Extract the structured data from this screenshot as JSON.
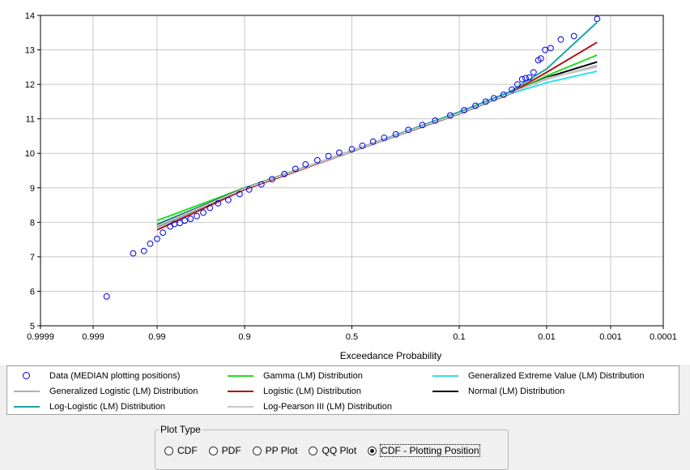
{
  "chart_data": {
    "type": "scatter",
    "xlabel": "Exceedance Probability",
    "ylabel": "",
    "ylim": [
      5,
      14
    ],
    "y_ticks": [
      5,
      6,
      7,
      8,
      9,
      10,
      11,
      12,
      13,
      14
    ],
    "x_scale": "normal-probability (reversed)",
    "x_ticks": [
      0.9999,
      0.999,
      0.99,
      0.9,
      0.5,
      0.1,
      0.01,
      0.001,
      0.0001
    ],
    "x_tick_labels": [
      "0.9999",
      "0.999",
      "0.99",
      "0.9",
      "0.5",
      "0.1",
      "0.01",
      "0.001",
      "0.0001"
    ],
    "grid": true,
    "legend_placement": "bottom",
    "data_points": {
      "name": "Data (MEDIAN plotting positions)",
      "color": "#0000ee",
      "points": [
        [
          0.9983,
          5.85
        ],
        [
          0.9955,
          7.1
        ],
        [
          0.9935,
          7.17
        ],
        [
          0.992,
          7.38
        ],
        [
          0.99,
          7.52
        ],
        [
          0.988,
          7.7
        ],
        [
          0.985,
          7.88
        ],
        [
          0.983,
          7.95
        ],
        [
          0.98,
          7.98
        ],
        [
          0.977,
          8.05
        ],
        [
          0.973,
          8.1
        ],
        [
          0.968,
          8.18
        ],
        [
          0.962,
          8.28
        ],
        [
          0.955,
          8.42
        ],
        [
          0.945,
          8.55
        ],
        [
          0.93,
          8.65
        ],
        [
          0.91,
          8.82
        ],
        [
          0.89,
          8.95
        ],
        [
          0.86,
          9.1
        ],
        [
          0.83,
          9.25
        ],
        [
          0.79,
          9.4
        ],
        [
          0.75,
          9.55
        ],
        [
          0.71,
          9.68
        ],
        [
          0.66,
          9.8
        ],
        [
          0.61,
          9.92
        ],
        [
          0.56,
          10.02
        ],
        [
          0.5,
          10.12
        ],
        [
          0.45,
          10.22
        ],
        [
          0.4,
          10.34
        ],
        [
          0.35,
          10.45
        ],
        [
          0.3,
          10.55
        ],
        [
          0.25,
          10.68
        ],
        [
          0.2,
          10.82
        ],
        [
          0.16,
          10.95
        ],
        [
          0.12,
          11.1
        ],
        [
          0.09,
          11.25
        ],
        [
          0.07,
          11.38
        ],
        [
          0.055,
          11.5
        ],
        [
          0.045,
          11.6
        ],
        [
          0.035,
          11.7
        ],
        [
          0.028,
          11.85
        ],
        [
          0.024,
          12.0
        ],
        [
          0.021,
          12.15
        ],
        [
          0.019,
          12.18
        ],
        [
          0.017,
          12.2
        ],
        [
          0.015,
          12.35
        ],
        [
          0.013,
          12.7
        ],
        [
          0.012,
          12.75
        ],
        [
          0.0105,
          13.0
        ],
        [
          0.0088,
          13.05
        ],
        [
          0.0063,
          13.3
        ],
        [
          0.004,
          13.4
        ],
        [
          0.0017,
          13.9
        ]
      ]
    },
    "series": [
      {
        "name": "Gamma (LM) Distribution",
        "color": "#22dd22",
        "points": [
          [
            0.99,
            8.05
          ],
          [
            0.9,
            9.0
          ],
          [
            0.5,
            10.06
          ],
          [
            0.1,
            11.15
          ],
          [
            0.03,
            11.72
          ],
          [
            0.01,
            12.25
          ],
          [
            0.0017,
            12.85
          ]
        ]
      },
      {
        "name": "Generalized Extreme Value (LM) Distribution",
        "color": "#33e0e8",
        "points": [
          [
            0.99,
            7.95
          ],
          [
            0.9,
            8.98
          ],
          [
            0.5,
            10.05
          ],
          [
            0.1,
            11.18
          ],
          [
            0.03,
            11.72
          ],
          [
            0.01,
            12.05
          ],
          [
            0.0017,
            12.38
          ]
        ]
      },
      {
        "name": "Generalized Logistic (LM) Distribution",
        "color": "#b0b0b0",
        "points": [
          [
            0.99,
            7.85
          ],
          [
            0.9,
            8.97
          ],
          [
            0.5,
            10.08
          ],
          [
            0.1,
            11.2
          ],
          [
            0.03,
            11.75
          ],
          [
            0.01,
            12.15
          ],
          [
            0.0017,
            12.55
          ]
        ]
      },
      {
        "name": "Logistic (LM) Distribution",
        "color": "#b01010",
        "points": [
          [
            0.99,
            7.78
          ],
          [
            0.9,
            8.95
          ],
          [
            0.5,
            10.05
          ],
          [
            0.1,
            11.15
          ],
          [
            0.03,
            11.73
          ],
          [
            0.01,
            12.35
          ],
          [
            0.0017,
            13.22
          ]
        ]
      },
      {
        "name": "Normal (LM) Distribution",
        "color": "#000000",
        "points": [
          [
            0.99,
            7.92
          ],
          [
            0.9,
            8.99
          ],
          [
            0.5,
            10.06
          ],
          [
            0.1,
            11.15
          ],
          [
            0.03,
            11.72
          ],
          [
            0.01,
            12.2
          ],
          [
            0.0017,
            12.65
          ]
        ]
      },
      {
        "name": "Log-Logistic (LM) Distribution",
        "color": "#1aa6a6",
        "points": [
          [
            0.99,
            7.88
          ],
          [
            0.9,
            8.98
          ],
          [
            0.5,
            10.06
          ],
          [
            0.1,
            11.2
          ],
          [
            0.03,
            11.78
          ],
          [
            0.01,
            12.45
          ],
          [
            0.0017,
            13.8
          ]
        ]
      },
      {
        "name": "Log-Pearson III (LM) Distribution",
        "color": "#c8c8c8",
        "points": [
          [
            0.99,
            7.9
          ],
          [
            0.9,
            8.98
          ],
          [
            0.5,
            10.06
          ],
          [
            0.1,
            11.16
          ],
          [
            0.03,
            11.73
          ],
          [
            0.01,
            12.18
          ],
          [
            0.0017,
            12.5
          ]
        ]
      }
    ]
  },
  "legend": {
    "items": [
      {
        "label": "Data (MEDIAN plotting positions)",
        "kind": "marker",
        "color": "#0000ee"
      },
      {
        "label": "Gamma (LM) Distribution",
        "kind": "line",
        "color": "#22dd22"
      },
      {
        "label": "Generalized Extreme Value (LM) Distribution",
        "kind": "line",
        "color": "#33e0e8"
      },
      {
        "label": "Generalized Logistic (LM) Distribution",
        "kind": "line",
        "color": "#b0b0b0"
      },
      {
        "label": "Logistic (LM) Distribution",
        "kind": "line",
        "color": "#b01010"
      },
      {
        "label": "Normal (LM) Distribution",
        "kind": "line",
        "color": "#000000"
      },
      {
        "label": "Log-Logistic (LM) Distribution",
        "kind": "line",
        "color": "#1aa6a6"
      },
      {
        "label": "Log-Pearson III (LM) Distribution",
        "kind": "line",
        "color": "#c8c8c8"
      }
    ]
  },
  "plot_type": {
    "title": "Plot Type",
    "options": [
      {
        "label": "CDF",
        "selected": false
      },
      {
        "label": "PDF",
        "selected": false
      },
      {
        "label": "PP Plot",
        "selected": false
      },
      {
        "label": "QQ Plot",
        "selected": false
      },
      {
        "label": "CDF - Plotting Position",
        "selected": true
      }
    ]
  }
}
